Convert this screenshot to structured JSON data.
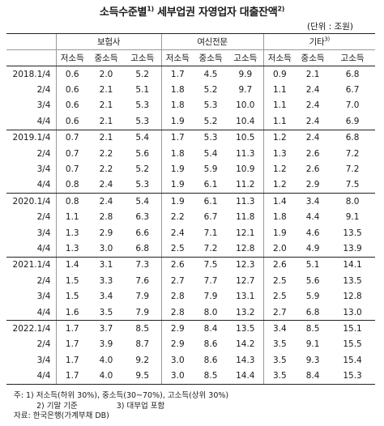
{
  "title": {
    "prefix": "소득수준별",
    "sup1": "1)",
    "main": "세부업권 자영업자 대출잔액",
    "sup2": "2)"
  },
  "unit": "(단위 : 조원)",
  "groups": [
    {
      "label": "보험사",
      "sup": ""
    },
    {
      "label": "여신전문",
      "sup": ""
    },
    {
      "label": "기타",
      "sup": "3)"
    }
  ],
  "subheaders": [
    "저소득",
    "중소득",
    "고소득",
    "저소득",
    "중소득",
    "고소득",
    "저소득",
    "중소득",
    "고소득"
  ],
  "rows": [
    {
      "label": "2018.1/4",
      "values": [
        "0.6",
        "2.0",
        "5.2",
        "1.7",
        "4.5",
        "9.9",
        "0.9",
        "2.1",
        "6.8"
      ]
    },
    {
      "label": "2/4",
      "values": [
        "0.6",
        "2.1",
        "5.1",
        "1.8",
        "5.2",
        "9.7",
        "1.1",
        "2.4",
        "6.7"
      ]
    },
    {
      "label": "3/4",
      "values": [
        "0.6",
        "2.1",
        "5.3",
        "1.8",
        "5.3",
        "10.0",
        "1.1",
        "2.4",
        "7.0"
      ]
    },
    {
      "label": "4/4",
      "values": [
        "0.6",
        "2.1",
        "5.3",
        "1.9",
        "5.2",
        "10.4",
        "1.1",
        "2.4",
        "6.9"
      ]
    },
    {
      "label": "2019.1/4",
      "values": [
        "0.7",
        "2.1",
        "5.4",
        "1.7",
        "5.3",
        "10.5",
        "1.2",
        "2.4",
        "6.8"
      ]
    },
    {
      "label": "2/4",
      "values": [
        "0.7",
        "2.2",
        "5.6",
        "1.8",
        "5.4",
        "11.3",
        "1.3",
        "2.6",
        "7.2"
      ]
    },
    {
      "label": "3/4",
      "values": [
        "0.7",
        "2.2",
        "5.2",
        "1.9",
        "5.9",
        "10.9",
        "1.2",
        "2.6",
        "7.2"
      ]
    },
    {
      "label": "4/4",
      "values": [
        "0.8",
        "2.4",
        "5.3",
        "1.9",
        "6.1",
        "11.2",
        "1.2",
        "2.9",
        "7.5"
      ]
    },
    {
      "label": "2020.1/4",
      "values": [
        "0.8",
        "2.4",
        "5.4",
        "1.9",
        "6.1",
        "11.3",
        "1.4",
        "3.4",
        "8.0"
      ]
    },
    {
      "label": "2/4",
      "values": [
        "1.1",
        "2.8",
        "6.3",
        "2.2",
        "6.7",
        "11.8",
        "1.8",
        "4.4",
        "9.1"
      ]
    },
    {
      "label": "3/4",
      "values": [
        "1.3",
        "2.9",
        "6.6",
        "2.4",
        "7.1",
        "12.1",
        "1.9",
        "4.6",
        "13.5"
      ]
    },
    {
      "label": "4/4",
      "values": [
        "1.3",
        "3.0",
        "6.8",
        "2.5",
        "7.2",
        "12.8",
        "2.0",
        "4.9",
        "13.9"
      ]
    },
    {
      "label": "2021.1/4",
      "values": [
        "1.4",
        "3.1",
        "7.3",
        "2.6",
        "7.5",
        "12.3",
        "2.6",
        "5.1",
        "14.1"
      ]
    },
    {
      "label": "2/4",
      "values": [
        "1.5",
        "3.3",
        "7.6",
        "2.7",
        "7.7",
        "12.7",
        "2.5",
        "5.6",
        "13.5"
      ]
    },
    {
      "label": "3/4",
      "values": [
        "1.5",
        "3.4",
        "7.9",
        "2.8",
        "7.9",
        "13.1",
        "2.5",
        "5.9",
        "12.8"
      ]
    },
    {
      "label": "4/4",
      "values": [
        "1.6",
        "3.5",
        "7.9",
        "2.8",
        "8.0",
        "13.2",
        "2.7",
        "6.8",
        "13.0"
      ]
    },
    {
      "label": "2022.1/4",
      "values": [
        "1.7",
        "3.7",
        "8.5",
        "2.9",
        "8.4",
        "13.5",
        "3.4",
        "8.5",
        "15.1"
      ]
    },
    {
      "label": "2/4",
      "values": [
        "1.7",
        "3.9",
        "8.7",
        "2.9",
        "8.6",
        "14.2",
        "3.5",
        "9.1",
        "15.5"
      ]
    },
    {
      "label": "3/4",
      "values": [
        "1.7",
        "4.0",
        "9.2",
        "3.0",
        "8.6",
        "14.3",
        "3.5",
        "9.3",
        "15.4"
      ]
    },
    {
      "label": "4/4",
      "values": [
        "1.7",
        "4.0",
        "9.5",
        "3.0",
        "8.5",
        "14.4",
        "3.5",
        "8.4",
        "15.3"
      ]
    }
  ],
  "notes": {
    "n1_prefix": "주: 1)",
    "n1_text": "저소득(하위 30%), 중소득(30~70%), 고소득(상위 30%)",
    "n2": "2) 기말 기준",
    "n3": "3) 대부업 포함",
    "source": "자료: 한국은행(가계부채 DB)"
  }
}
